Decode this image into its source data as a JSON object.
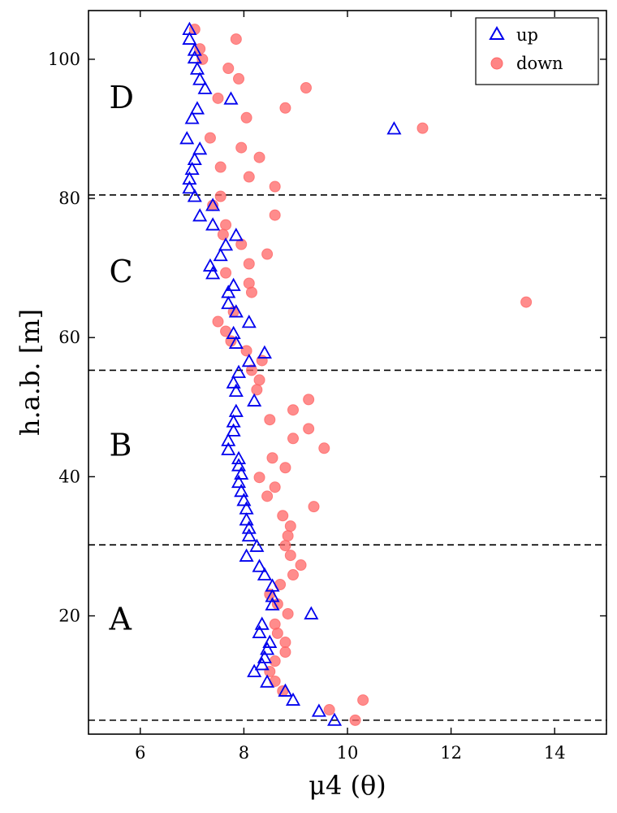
{
  "chart_data": {
    "type": "scatter",
    "xlabel": "μ4 (θ)",
    "ylabel": "h.a.b. [m]",
    "xlim": [
      5,
      15
    ],
    "ylim": [
      3,
      107
    ],
    "xticks": [
      6,
      8,
      10,
      12,
      14
    ],
    "yticks": [
      20,
      40,
      60,
      80,
      100
    ],
    "grid": false,
    "legend_position": "top-right",
    "dashed_lines_y": [
      5,
      30.2,
      55.3,
      80.5
    ],
    "region_labels": [
      {
        "text": "A",
        "x": 5.4,
        "y": 18
      },
      {
        "text": "B",
        "x": 5.4,
        "y": 43
      },
      {
        "text": "C",
        "x": 5.4,
        "y": 68
      },
      {
        "text": "D",
        "x": 5.4,
        "y": 93
      }
    ],
    "series": [
      {
        "name": "up",
        "marker": "triangle",
        "color": "#0000ee",
        "points": [
          [
            9.75,
            5.0
          ],
          [
            9.45,
            6.3
          ],
          [
            8.95,
            7.9
          ],
          [
            8.8,
            9.2
          ],
          [
            8.45,
            10.5
          ],
          [
            8.2,
            12.0
          ],
          [
            8.35,
            13.0
          ],
          [
            8.4,
            14.0
          ],
          [
            8.45,
            15.2
          ],
          [
            8.5,
            16.2
          ],
          [
            8.3,
            17.6
          ],
          [
            8.35,
            18.8
          ],
          [
            9.3,
            20.3
          ],
          [
            8.55,
            21.6
          ],
          [
            8.55,
            22.8
          ],
          [
            8.55,
            24.3
          ],
          [
            8.4,
            25.9
          ],
          [
            8.3,
            27.1
          ],
          [
            8.05,
            28.6
          ],
          [
            8.25,
            30.0
          ],
          [
            8.1,
            31.5
          ],
          [
            8.1,
            32.6
          ],
          [
            8.05,
            33.8
          ],
          [
            8.05,
            35.4
          ],
          [
            8.0,
            36.6
          ],
          [
            7.95,
            37.9
          ],
          [
            7.9,
            39.2
          ],
          [
            7.95,
            40.4
          ],
          [
            7.9,
            41.6
          ],
          [
            7.9,
            42.6
          ],
          [
            7.7,
            43.9
          ],
          [
            7.7,
            45.2
          ],
          [
            7.8,
            46.6
          ],
          [
            7.8,
            47.9
          ],
          [
            7.85,
            49.4
          ],
          [
            8.2,
            50.9
          ],
          [
            7.85,
            52.3
          ],
          [
            7.8,
            53.5
          ],
          [
            7.9,
            55.0
          ],
          [
            8.1,
            56.6
          ],
          [
            8.4,
            57.8
          ],
          [
            7.85,
            59.2
          ],
          [
            7.8,
            60.6
          ],
          [
            8.1,
            62.2
          ],
          [
            7.85,
            63.7
          ],
          [
            7.7,
            64.9
          ],
          [
            7.7,
            66.5
          ],
          [
            7.8,
            67.5
          ],
          [
            7.4,
            69.2
          ],
          [
            7.35,
            70.3
          ],
          [
            7.55,
            71.8
          ],
          [
            7.65,
            73.3
          ],
          [
            7.85,
            74.7
          ],
          [
            7.4,
            76.2
          ],
          [
            7.15,
            77.5
          ],
          [
            7.4,
            79.0
          ],
          [
            7.05,
            80.3
          ],
          [
            6.95,
            81.5
          ],
          [
            6.95,
            82.8
          ],
          [
            7.0,
            84.2
          ],
          [
            7.05,
            85.6
          ],
          [
            7.15,
            87.1
          ],
          [
            6.9,
            88.6
          ],
          [
            10.9,
            90.0
          ],
          [
            7.0,
            91.5
          ],
          [
            7.1,
            92.9
          ],
          [
            7.75,
            94.3
          ],
          [
            7.25,
            95.8
          ],
          [
            7.15,
            97.1
          ],
          [
            7.1,
            98.6
          ],
          [
            7.05,
            100.2
          ],
          [
            7.05,
            101.3
          ],
          [
            6.95,
            102.9
          ],
          [
            6.95,
            104.3
          ]
        ]
      },
      {
        "name": "down",
        "marker": "circle",
        "color": "#ff6666",
        "points": [
          [
            10.15,
            5.0
          ],
          [
            9.65,
            6.5
          ],
          [
            10.3,
            7.9
          ],
          [
            8.75,
            9.2
          ],
          [
            8.6,
            10.6
          ],
          [
            8.5,
            12.0
          ],
          [
            8.6,
            13.5
          ],
          [
            8.8,
            14.8
          ],
          [
            8.8,
            16.2
          ],
          [
            8.65,
            17.5
          ],
          [
            8.6,
            18.8
          ],
          [
            8.85,
            20.3
          ],
          [
            8.65,
            21.7
          ],
          [
            8.5,
            23.1
          ],
          [
            8.7,
            24.5
          ],
          [
            8.95,
            25.9
          ],
          [
            9.1,
            27.3
          ],
          [
            8.9,
            28.7
          ],
          [
            8.8,
            30.1
          ],
          [
            8.85,
            31.5
          ],
          [
            8.9,
            32.9
          ],
          [
            8.75,
            34.4
          ],
          [
            9.35,
            35.7
          ],
          [
            8.45,
            37.2
          ],
          [
            8.6,
            38.5
          ],
          [
            8.3,
            39.9
          ],
          [
            8.8,
            41.3
          ],
          [
            8.55,
            42.7
          ],
          [
            9.55,
            44.1
          ],
          [
            8.95,
            45.5
          ],
          [
            9.25,
            46.9
          ],
          [
            8.5,
            48.2
          ],
          [
            8.95,
            49.6
          ],
          [
            9.25,
            51.1
          ],
          [
            8.25,
            52.5
          ],
          [
            8.3,
            53.9
          ],
          [
            8.15,
            55.3
          ],
          [
            8.35,
            56.7
          ],
          [
            8.05,
            58.1
          ],
          [
            7.75,
            59.5
          ],
          [
            7.65,
            60.9
          ],
          [
            7.5,
            62.3
          ],
          [
            7.8,
            63.7
          ],
          [
            13.45,
            65.1
          ],
          [
            8.15,
            66.5
          ],
          [
            8.1,
            67.8
          ],
          [
            7.65,
            69.3
          ],
          [
            8.1,
            70.6
          ],
          [
            8.45,
            72.0
          ],
          [
            7.95,
            73.4
          ],
          [
            7.6,
            74.8
          ],
          [
            7.65,
            76.2
          ],
          [
            8.6,
            77.6
          ],
          [
            7.4,
            79.0
          ],
          [
            7.55,
            80.3
          ],
          [
            8.6,
            81.7
          ],
          [
            8.1,
            83.1
          ],
          [
            7.55,
            84.5
          ],
          [
            8.3,
            85.9
          ],
          [
            7.95,
            87.3
          ],
          [
            7.35,
            88.7
          ],
          [
            11.45,
            90.1
          ],
          [
            8.05,
            91.6
          ],
          [
            8.8,
            93.0
          ],
          [
            7.5,
            94.4
          ],
          [
            9.2,
            95.9
          ],
          [
            7.9,
            97.2
          ],
          [
            7.7,
            98.7
          ],
          [
            7.2,
            100.0
          ],
          [
            7.15,
            101.5
          ],
          [
            7.85,
            102.9
          ],
          [
            7.05,
            104.3
          ]
        ]
      }
    ]
  }
}
